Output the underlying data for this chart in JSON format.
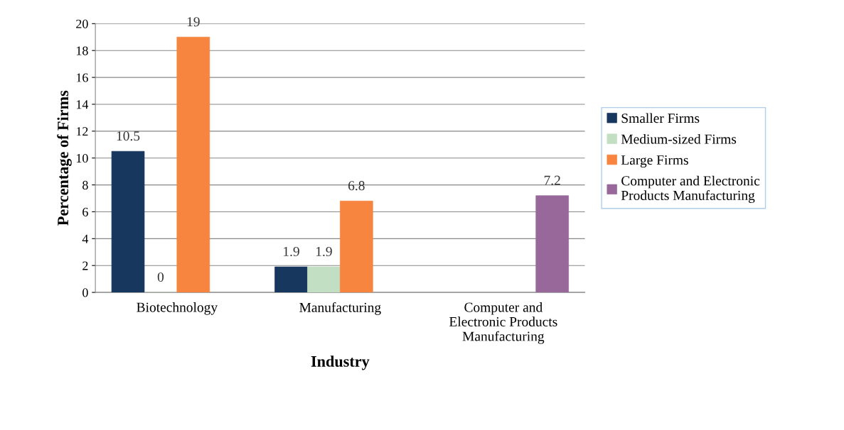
{
  "chart_data": {
    "type": "bar",
    "xlabel": "Industry",
    "ylabel": "Percentage of Firms",
    "categories": [
      "Biotechnology",
      "Manufacturing",
      "Computer and\nElectronic Products\nManufacturing"
    ],
    "series": [
      {
        "name": "Smaller Firms",
        "color": "#17375e",
        "values": [
          10.5,
          1.9,
          null
        ]
      },
      {
        "name": "Medium-sized Firms",
        "color": "#c3dfc3",
        "values": [
          0,
          1.9,
          null
        ]
      },
      {
        "name": "Large Firms",
        "color": "#f7843f",
        "values": [
          19,
          6.8,
          null
        ]
      },
      {
        "name": "Computer and Electronic\nProducts Manufacturing",
        "color": "#98689b",
        "values": [
          null,
          null,
          7.2
        ]
      }
    ],
    "ylim": [
      0,
      20
    ],
    "yticks": [
      0,
      2,
      4,
      6,
      8,
      10,
      12,
      14,
      16,
      18,
      20
    ],
    "grid": "y",
    "legend": "right",
    "data_labels": true
  }
}
